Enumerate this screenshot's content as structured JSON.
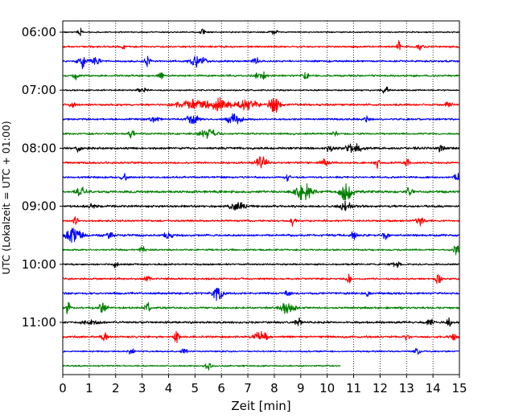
{
  "chart_data": {
    "type": "line",
    "title": "",
    "xlabel": "Zeit  [min]",
    "ylabel": "UTC (Lokalzeit = UTC + 01:00)",
    "xlim": [
      0,
      15
    ],
    "x_ticks": [
      "0",
      "1",
      "2",
      "3",
      "4",
      "5",
      "6",
      "7",
      "8",
      "9",
      "10",
      "11",
      "12",
      "13",
      "14",
      "15"
    ],
    "y_ticks": [
      "06:00",
      "07:00",
      "08:00",
      "09:00",
      "10:00",
      "11:00"
    ],
    "grid": "vertical dotted",
    "legend": "none",
    "trace_interval_min": 15,
    "first_trace_utc": "06:00",
    "trace_colors": [
      "#000000",
      "#ff0000",
      "#0000ff",
      "#008000"
    ],
    "traces": [
      {
        "utc": "06:00",
        "color": "#000000",
        "end_min": 15,
        "noise": 0.12,
        "events": [
          [
            0.65,
            1.0,
            0.08
          ],
          [
            5.3,
            0.9,
            0.08
          ],
          [
            8.0,
            0.4,
            0.15
          ]
        ]
      },
      {
        "utc": "06:15",
        "color": "#ff0000",
        "end_min": 15,
        "noise": 0.18,
        "events": [
          [
            2.3,
            0.5,
            0.1
          ],
          [
            12.7,
            1.1,
            0.06
          ],
          [
            13.5,
            0.5,
            0.15
          ]
        ]
      },
      {
        "utc": "06:30",
        "color": "#0000ff",
        "end_min": 15,
        "noise": 0.18,
        "events": [
          [
            0.7,
            1.8,
            0.12
          ],
          [
            1.2,
            0.7,
            0.2
          ],
          [
            3.2,
            1.0,
            0.1
          ],
          [
            5.1,
            1.3,
            0.25
          ],
          [
            7.3,
            0.6,
            0.15
          ]
        ]
      },
      {
        "utc": "06:45",
        "color": "#008000",
        "end_min": 15,
        "noise": 0.18,
        "events": [
          [
            0.5,
            0.6,
            0.1
          ],
          [
            3.7,
            0.8,
            0.1
          ],
          [
            7.5,
            1.1,
            0.2
          ],
          [
            9.2,
            0.8,
            0.1
          ]
        ]
      },
      {
        "utc": "07:00",
        "color": "#000000",
        "end_min": 15,
        "noise": 0.14,
        "events": [
          [
            3.0,
            0.4,
            0.2
          ],
          [
            12.2,
            0.6,
            0.15
          ]
        ]
      },
      {
        "utc": "07:15",
        "color": "#ff0000",
        "end_min": 15,
        "noise": 0.2,
        "events": [
          [
            0.4,
            0.8,
            0.1
          ],
          [
            4.8,
            0.9,
            0.5
          ],
          [
            5.9,
            1.1,
            0.5
          ],
          [
            7.0,
            1.0,
            0.4
          ],
          [
            8.0,
            1.5,
            0.2
          ],
          [
            14.6,
            0.7,
            0.1
          ]
        ]
      },
      {
        "utc": "07:30",
        "color": "#0000ff",
        "end_min": 15,
        "noise": 0.18,
        "events": [
          [
            3.5,
            0.6,
            0.15
          ],
          [
            4.9,
            1.4,
            0.2
          ],
          [
            6.5,
            0.9,
            0.3
          ],
          [
            11.5,
            0.5,
            0.1
          ]
        ]
      },
      {
        "utc": "07:45",
        "color": "#008000",
        "end_min": 15,
        "noise": 0.18,
        "events": [
          [
            2.6,
            0.9,
            0.1
          ],
          [
            5.5,
            0.9,
            0.3
          ],
          [
            10.3,
            0.5,
            0.1
          ]
        ]
      },
      {
        "utc": "08:00",
        "color": "#000000",
        "end_min": 15,
        "noise": 0.22,
        "events": [
          [
            0.6,
            0.6,
            0.1
          ],
          [
            10.1,
            1.0,
            0.1
          ],
          [
            11.0,
            0.9,
            0.3
          ],
          [
            14.3,
            1.0,
            0.1
          ]
        ]
      },
      {
        "utc": "08:15",
        "color": "#ff0000",
        "end_min": 15,
        "noise": 0.2,
        "events": [
          [
            7.5,
            1.2,
            0.2
          ],
          [
            9.9,
            0.8,
            0.15
          ],
          [
            11.9,
            0.9,
            0.1
          ],
          [
            13.0,
            0.8,
            0.1
          ]
        ]
      },
      {
        "utc": "08:30",
        "color": "#0000ff",
        "end_min": 15,
        "noise": 0.18,
        "events": [
          [
            2.3,
            0.9,
            0.1
          ],
          [
            8.5,
            0.6,
            0.1
          ],
          [
            14.9,
            1.0,
            0.1
          ]
        ]
      },
      {
        "utc": "08:45",
        "color": "#008000",
        "end_min": 15,
        "noise": 0.24,
        "events": [
          [
            0.7,
            0.7,
            0.2
          ],
          [
            9.1,
            1.8,
            0.3
          ],
          [
            10.7,
            1.9,
            0.25
          ],
          [
            13.1,
            1.0,
            0.1
          ]
        ]
      },
      {
        "utc": "09:00",
        "color": "#000000",
        "end_min": 15,
        "noise": 0.22,
        "events": [
          [
            1.1,
            0.6,
            0.1
          ],
          [
            6.6,
            0.7,
            0.3
          ],
          [
            10.7,
            1.1,
            0.2
          ]
        ]
      },
      {
        "utc": "09:15",
        "color": "#ff0000",
        "end_min": 15,
        "noise": 0.18,
        "events": [
          [
            0.5,
            0.7,
            0.1
          ],
          [
            8.7,
            0.8,
            0.1
          ],
          [
            13.5,
            0.8,
            0.15
          ]
        ]
      },
      {
        "utc": "09:30",
        "color": "#0000ff",
        "end_min": 15,
        "noise": 0.22,
        "events": [
          [
            0.4,
            1.4,
            0.3
          ],
          [
            1.8,
            1.2,
            0.1
          ],
          [
            4.0,
            0.6,
            0.15
          ],
          [
            11.0,
            1.0,
            0.1
          ],
          [
            12.2,
            0.8,
            0.1
          ]
        ]
      },
      {
        "utc": "09:45",
        "color": "#008000",
        "end_min": 15,
        "noise": 0.16,
        "events": [
          [
            3.0,
            0.8,
            0.1
          ],
          [
            14.9,
            1.2,
            0.1
          ]
        ]
      },
      {
        "utc": "10:00",
        "color": "#000000",
        "end_min": 15,
        "noise": 0.16,
        "events": [
          [
            2.0,
            0.5,
            0.1
          ],
          [
            12.6,
            0.5,
            0.15
          ]
        ]
      },
      {
        "utc": "10:15",
        "color": "#ff0000",
        "end_min": 15,
        "noise": 0.18,
        "events": [
          [
            3.2,
            0.6,
            0.1
          ],
          [
            10.8,
            1.0,
            0.1
          ],
          [
            14.2,
            1.1,
            0.1
          ]
        ]
      },
      {
        "utc": "10:30",
        "color": "#0000ff",
        "end_min": 15,
        "noise": 0.2,
        "events": [
          [
            5.9,
            1.6,
            0.2
          ],
          [
            8.5,
            0.7,
            0.1
          ],
          [
            11.5,
            0.6,
            0.1
          ]
        ]
      },
      {
        "utc": "10:45",
        "color": "#008000",
        "end_min": 15,
        "noise": 0.2,
        "events": [
          [
            0.2,
            1.0,
            0.1
          ],
          [
            1.5,
            0.8,
            0.2
          ],
          [
            3.2,
            0.9,
            0.1
          ],
          [
            8.5,
            1.3,
            0.25
          ]
        ]
      },
      {
        "utc": "11:00",
        "color": "#000000",
        "end_min": 15,
        "noise": 0.2,
        "events": [
          [
            1.0,
            0.4,
            0.3
          ],
          [
            8.9,
            0.9,
            0.1
          ],
          [
            13.9,
            1.0,
            0.1
          ],
          [
            14.6,
            0.7,
            0.1
          ]
        ]
      },
      {
        "utc": "11:15",
        "color": "#ff0000",
        "end_min": 15,
        "noise": 0.2,
        "events": [
          [
            1.6,
            1.0,
            0.1
          ],
          [
            4.3,
            1.0,
            0.1
          ],
          [
            7.5,
            1.0,
            0.25
          ],
          [
            13.0,
            0.6,
            0.1
          ],
          [
            14.8,
            0.8,
            0.1
          ]
        ]
      },
      {
        "utc": "11:30",
        "color": "#0000ff",
        "end_min": 15,
        "noise": 0.14,
        "events": [
          [
            2.6,
            1.0,
            0.1
          ],
          [
            4.6,
            0.6,
            0.1
          ],
          [
            13.4,
            0.7,
            0.1
          ]
        ]
      },
      {
        "utc": "11:45",
        "color": "#008000",
        "end_min": 10.5,
        "noise": 0.14,
        "events": [
          [
            5.5,
            1.0,
            0.1
          ]
        ]
      }
    ]
  }
}
